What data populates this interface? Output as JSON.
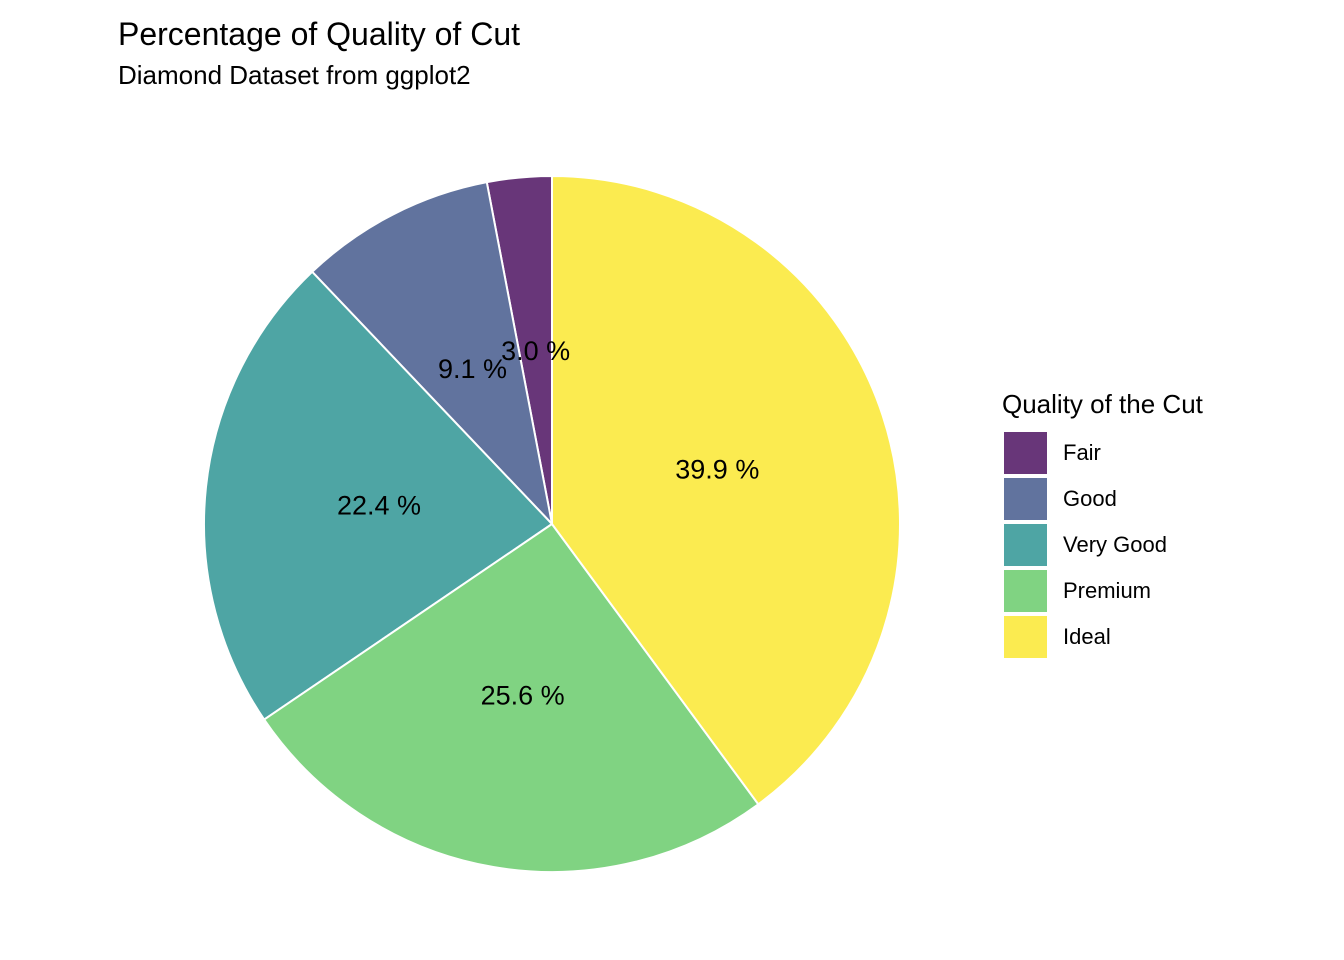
{
  "chart_data": {
    "type": "pie",
    "title": "Percentage of Quality of Cut",
    "subtitle": "Diamond Dataset from ggplot2",
    "legend_title": "Quality of the Cut",
    "legend_position": "right",
    "start_angle_deg": 0,
    "direction": "counterclockwise",
    "slices": [
      {
        "category": "Fair",
        "value": 3.0,
        "label": "3.0 %",
        "color": "#683679"
      },
      {
        "category": "Good",
        "value": 9.1,
        "label": "9.1 %",
        "color": "#61739E"
      },
      {
        "category": "Very Good",
        "value": 22.4,
        "label": "22.4 %",
        "color": "#4EA5A4"
      },
      {
        "category": "Premium",
        "value": 25.6,
        "label": "25.6 %",
        "color": "#80D382"
      },
      {
        "category": "Ideal",
        "value": 39.9,
        "label": "39.9 %",
        "color": "#FBEB50"
      }
    ]
  }
}
